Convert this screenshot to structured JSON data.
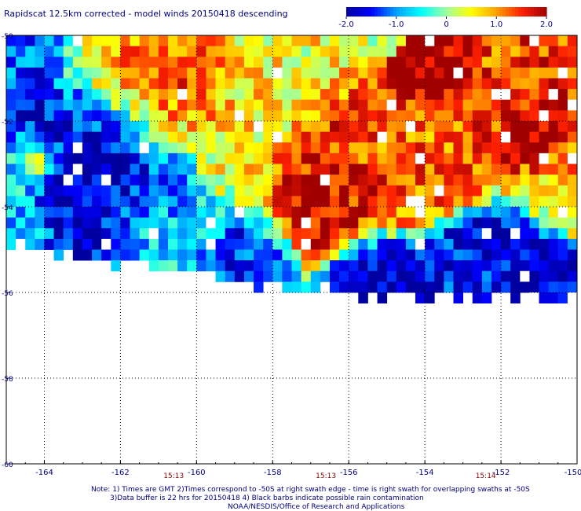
{
  "chart_data": {
    "type": "heatmap",
    "title": "Rapidscat 12.5km corrected - model winds 20150418 descending",
    "colorbar": {
      "ticks": [
        "-2.0",
        "-1.0",
        "0",
        "1.0",
        "2.0"
      ],
      "range": [
        -2.0,
        2.0
      ],
      "colors": [
        "#0000a0",
        "#0000ff",
        "#00a0ff",
        "#00ffff",
        "#a0ffa0",
        "#ffff00",
        "#ffa000",
        "#ff2000",
        "#a00000"
      ]
    },
    "x_ticks": [
      "-164",
      "-162",
      "-160",
      "-158",
      "-156",
      "-154",
      "-152",
      "-150"
    ],
    "y_ticks": [
      "-50",
      "-52",
      "-54",
      "-56",
      "-58",
      "-60"
    ],
    "xlim": [
      -165,
      -150
    ],
    "ylim": [
      -60,
      -50
    ],
    "grid": true,
    "times": [
      {
        "label": "15:13",
        "lon": -160.6
      },
      {
        "label": "15:13",
        "lon": -156.6
      },
      {
        "label": "15:14",
        "lon": -152.4
      }
    ],
    "notes": [
      "Note: 1) Times are GMT 2)Times correspond to -50S at right swath edge - time is right swath for overlapping swaths at -50S",
      "3)Data buffer is 22 hrs for 20150418 4) Black barbs indicate possible rain contamination",
      "NOAA/NESDIS/Office of Research and Applications"
    ],
    "regions": [
      {
        "lon": -163.0,
        "lat": -53.4,
        "value": -2.2,
        "spread": 1.2
      },
      {
        "lon": -162.5,
        "lat": -53.1,
        "value": -1.6,
        "spread": 1.6
      },
      {
        "lon": -164.2,
        "lat": -53.0,
        "value": 1.2,
        "spread": 0.5
      },
      {
        "lon": -161.5,
        "lat": -51.0,
        "value": 1.2,
        "spread": 1.2
      },
      {
        "lon": -160.2,
        "lat": -51.3,
        "value": 1.4,
        "spread": 0.8
      },
      {
        "lon": -159.0,
        "lat": -52.2,
        "value": 0.6,
        "spread": 1.0
      },
      {
        "lon": -156.6,
        "lat": -53.9,
        "value": 1.8,
        "spread": 1.0
      },
      {
        "lon": -156.0,
        "lat": -52.6,
        "value": 1.4,
        "spread": 1.0
      },
      {
        "lon": -154.3,
        "lat": -52.8,
        "value": 1.2,
        "spread": 1.0
      },
      {
        "lon": -153.5,
        "lat": -51.0,
        "value": 2.2,
        "spread": 0.7
      },
      {
        "lon": -152.5,
        "lat": -51.5,
        "value": 1.3,
        "spread": 1.0
      },
      {
        "lon": -151.0,
        "lat": -52.3,
        "value": 2.0,
        "spread": 0.7
      },
      {
        "lon": -150.5,
        "lat": -53.5,
        "value": 0.8,
        "spread": 0.8
      },
      {
        "lon": -150.4,
        "lat": -50.6,
        "value": 1.4,
        "spread": 0.6
      },
      {
        "lon": -155.5,
        "lat": -55.8,
        "value": -2.0,
        "spread": 0.8
      },
      {
        "lon": -153.0,
        "lat": -55.7,
        "value": -1.6,
        "spread": 0.8
      },
      {
        "lon": -151.5,
        "lat": -55.3,
        "value": -1.8,
        "spread": 0.8
      },
      {
        "lon": -158.5,
        "lat": -55.5,
        "value": -1.4,
        "spread": 0.8
      },
      {
        "lon": -161.0,
        "lat": -54.6,
        "value": -0.6,
        "spread": 1.0
      },
      {
        "lon": -164.5,
        "lat": -50.4,
        "value": -1.3,
        "spread": 0.6
      },
      {
        "lon": -164.5,
        "lat": -54.2,
        "value": -0.6,
        "spread": 0.8
      },
      {
        "lon": -157.5,
        "lat": -50.8,
        "value": 0.5,
        "spread": 1.0
      }
    ],
    "coverage_edge": [
      {
        "lon": -165.0,
        "lat": -54.9
      },
      {
        "lon": -164.0,
        "lat": -55.0
      },
      {
        "lon": -163.0,
        "lat": -55.2
      },
      {
        "lon": -162.0,
        "lat": -55.35
      },
      {
        "lon": -161.0,
        "lat": -55.45
      },
      {
        "lon": -160.0,
        "lat": -55.55
      },
      {
        "lon": -159.0,
        "lat": -55.75
      },
      {
        "lon": -158.0,
        "lat": -55.85
      },
      {
        "lon": -157.0,
        "lat": -55.95
      },
      {
        "lon": -156.0,
        "lat": -56.05
      },
      {
        "lon": -155.0,
        "lat": -56.05
      },
      {
        "lon": -154.0,
        "lat": -56.1
      },
      {
        "lon": -153.0,
        "lat": -56.2
      },
      {
        "lon": -152.0,
        "lat": -56.2
      },
      {
        "lon": -151.0,
        "lat": -56.2
      },
      {
        "lon": -150.0,
        "lat": -56.5
      }
    ]
  }
}
